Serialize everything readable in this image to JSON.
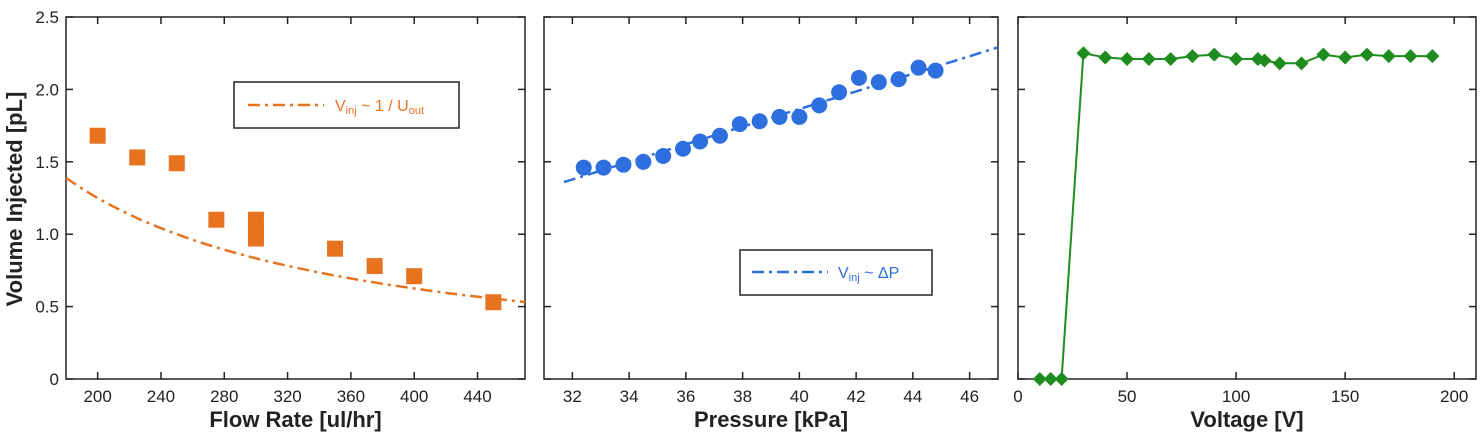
{
  "colors": {
    "orange": "#E8731F",
    "blue": "#2E6FE0",
    "green": "#1E8C1E",
    "axis": "#333333"
  },
  "shared": {
    "ylabel": "Volume Injected  [pL]"
  },
  "legends": {
    "flow": {
      "v": "V",
      "sub_inj": "inj",
      "mid": " ~ 1 / U",
      "sub_out": "out"
    },
    "pressure": {
      "v": "V",
      "sub_inj": "inj",
      "mid": " ~ ΔP"
    }
  },
  "chart_data": [
    {
      "type": "scatter",
      "xlabel": "Flow Rate [ul/hr]",
      "ylabel": "Volume Injected  [pL]",
      "xlim": [
        180,
        470
      ],
      "ylim": [
        0,
        2.5
      ],
      "xticks": [
        200,
        240,
        280,
        320,
        360,
        400,
        440
      ],
      "yticks": [
        0,
        0.5,
        1.0,
        1.5,
        2.0,
        2.5
      ],
      "ytick_labels": [
        "0",
        "0.5",
        "1.0",
        "1.5",
        "2.0",
        "2.5"
      ],
      "marker": "square",
      "series": [
        {
          "x": [
            200,
            225,
            250,
            275,
            300,
            300,
            300,
            350,
            375,
            400,
            450
          ],
          "y": [
            1.68,
            1.53,
            1.49,
            1.1,
            1.1,
            1.03,
            0.97,
            0.9,
            0.78,
            0.71,
            0.53
          ]
        }
      ],
      "fit": {
        "style": "dash-dot",
        "model": "a/x",
        "a": 250,
        "x_range": [
          180,
          470
        ]
      },
      "legend_position": "top-right",
      "grid": false
    },
    {
      "type": "scatter",
      "xlabel": "Pressure  [kPa]",
      "xlim": [
        31,
        47
      ],
      "ylim": [
        0,
        2.5
      ],
      "xticks": [
        32,
        34,
        36,
        38,
        40,
        42,
        44,
        46
      ],
      "marker": "circle",
      "series": [
        {
          "x": [
            32.4,
            33.1,
            33.8,
            34.5,
            35.2,
            35.9,
            36.5,
            37.2,
            37.9,
            38.6,
            39.3,
            40.0,
            40.7,
            41.4,
            42.1,
            42.8,
            43.5,
            44.2,
            44.8
          ],
          "y": [
            1.46,
            1.46,
            1.48,
            1.5,
            1.54,
            1.59,
            1.64,
            1.68,
            1.76,
            1.78,
            1.81,
            1.81,
            1.89,
            1.98,
            2.08,
            2.05,
            2.07,
            2.15,
            2.13
          ]
        }
      ],
      "fit": {
        "style": "dash-dot",
        "model": "linear",
        "points": [
          [
            31.7,
            1.36
          ],
          [
            47,
            2.29
          ]
        ]
      },
      "legend_position": "bottom-right",
      "grid": false
    },
    {
      "type": "line",
      "xlabel": "Voltage  [V]",
      "xlim": [
        0,
        210
      ],
      "ylim": [
        0,
        2.5
      ],
      "xticks": [
        0,
        50,
        100,
        150,
        200
      ],
      "marker": "diamond",
      "series": [
        {
          "x": [
            10,
            15,
            20,
            30,
            40,
            50,
            60,
            70,
            80,
            90,
            100,
            110,
            113,
            120,
            130,
            140,
            150,
            160,
            170,
            180,
            190
          ],
          "y": [
            0,
            0,
            0,
            2.25,
            2.22,
            2.21,
            2.21,
            2.21,
            2.23,
            2.24,
            2.21,
            2.21,
            2.2,
            2.18,
            2.18,
            2.24,
            2.22,
            2.24,
            2.23,
            2.23,
            2.23
          ]
        }
      ],
      "grid": false
    }
  ]
}
